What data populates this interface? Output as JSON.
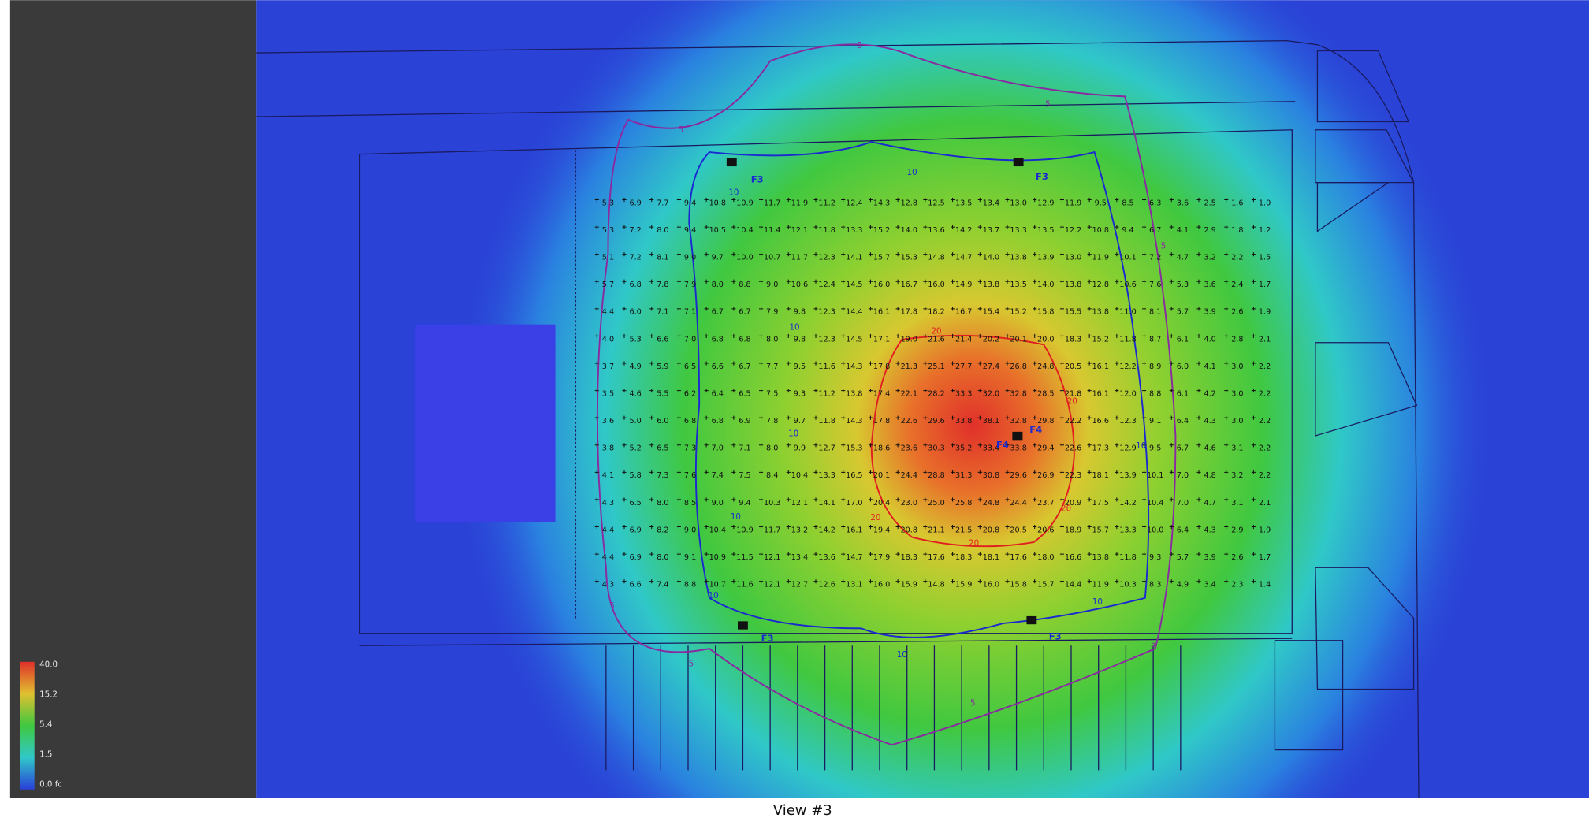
{
  "legend": {
    "labels": [
      "40.0",
      "15.2",
      "5.4",
      "1.5",
      "0.0 fc"
    ]
  },
  "caption": "View #3",
  "fixtures": [
    "F3",
    "F4"
  ],
  "contours": [
    "5",
    "10",
    "20"
  ],
  "grid": {
    "rows": [
      [
        "5.3",
        "6.9",
        "7.7",
        "9.4",
        "10.8",
        "10.9",
        "11.7",
        "11.9",
        "11.2",
        "12.4",
        "14.3",
        "12.8",
        "12.5",
        "13.5",
        "13.4",
        "13.0",
        "12.9",
        "11.9",
        "9.5",
        "8.5",
        "6.3",
        "3.6",
        "2.5",
        "1.6",
        "1.0"
      ],
      [
        "5.3",
        "7.2",
        "8.0",
        "9.4",
        "10.5",
        "10.4",
        "11.4",
        "12.1",
        "11.8",
        "13.3",
        "15.2",
        "14.0",
        "13.6",
        "14.2",
        "13.7",
        "13.3",
        "13.5",
        "12.2",
        "10.8",
        "9.4",
        "6.7",
        "4.1",
        "2.9",
        "1.8",
        "1.2"
      ],
      [
        "5.1",
        "7.2",
        "8.1",
        "9.0",
        "9.7",
        "10.0",
        "10.7",
        "11.7",
        "12.3",
        "14.1",
        "15.7",
        "15.3",
        "14.8",
        "14.7",
        "14.0",
        "13.8",
        "13.9",
        "13.0",
        "11.9",
        "10.1",
        "7.2",
        "4.7",
        "3.2",
        "2.2",
        "1.5"
      ],
      [
        "5.7",
        "6.8",
        "7.8",
        "7.9",
        "8.0",
        "8.8",
        "9.0",
        "10.6",
        "12.4",
        "14.5",
        "16.0",
        "16.7",
        "16.0",
        "14.9",
        "13.8",
        "13.5",
        "14.0",
        "13.8",
        "12.8",
        "10.6",
        "7.6",
        "5.3",
        "3.6",
        "2.4",
        "1.7"
      ],
      [
        "4.4",
        "6.0",
        "7.1",
        "7.1",
        "6.7",
        "6.7",
        "7.9",
        "9.8",
        "12.3",
        "14.4",
        "16.1",
        "17.8",
        "18.2",
        "16.7",
        "15.4",
        "15.2",
        "15.8",
        "15.5",
        "13.8",
        "11.0",
        "8.1",
        "5.7",
        "3.9",
        "2.6",
        "1.9"
      ],
      [
        "4.0",
        "5.3",
        "6.6",
        "7.0",
        "6.8",
        "6.8",
        "8.0",
        "9.8",
        "12.3",
        "14.5",
        "17.1",
        "19.0",
        "21.6",
        "21.4",
        "20.2",
        "20.1",
        "20.0",
        "18.3",
        "15.2",
        "11.8",
        "8.7",
        "6.1",
        "4.0",
        "2.8",
        "2.1"
      ],
      [
        "3.7",
        "4.9",
        "5.9",
        "6.5",
        "6.6",
        "6.7",
        "7.7",
        "9.5",
        "11.6",
        "14.3",
        "17.8",
        "21.3",
        "25.1",
        "27.7",
        "27.4",
        "26.8",
        "24.8",
        "20.5",
        "16.1",
        "12.2",
        "8.9",
        "6.0",
        "4.1",
        "3.0",
        "2.2"
      ],
      [
        "3.5",
        "4.6",
        "5.5",
        "6.2",
        "6.4",
        "6.5",
        "7.5",
        "9.3",
        "11.2",
        "13.8",
        "17.4",
        "22.1",
        "28.2",
        "33.3",
        "32.0",
        "32.8",
        "28.5",
        "21.8",
        "16.1",
        "12.0",
        "8.8",
        "6.1",
        "4.2",
        "3.0",
        "2.2"
      ],
      [
        "3.6",
        "5.0",
        "6.0",
        "6.8",
        "6.8",
        "6.9",
        "7.8",
        "9.7",
        "11.8",
        "14.3",
        "17.8",
        "22.6",
        "29.6",
        "33.8",
        "38.1",
        "32.8",
        "29.8",
        "22.2",
        "16.6",
        "12.3",
        "9.1",
        "6.4",
        "4.3",
        "3.0",
        "2.2"
      ],
      [
        "3.8",
        "5.2",
        "6.5",
        "7.3",
        "7.0",
        "7.1",
        "8.0",
        "9.9",
        "12.7",
        "15.3",
        "18.6",
        "23.6",
        "30.3",
        "35.2",
        "33.4",
        "33.8",
        "29.4",
        "22.6",
        "17.3",
        "12.9",
        "9.5",
        "6.7",
        "4.6",
        "3.1",
        "2.2"
      ],
      [
        "4.1",
        "5.8",
        "7.3",
        "7.6",
        "7.4",
        "7.5",
        "8.4",
        "10.4",
        "13.3",
        "16.5",
        "20.1",
        "24.4",
        "28.8",
        "31.3",
        "30.8",
        "29.6",
        "26.9",
        "22.3",
        "18.1",
        "13.9",
        "10.1",
        "7.0",
        "4.8",
        "3.2",
        "2.2"
      ],
      [
        "4.3",
        "6.5",
        "8.0",
        "8.5",
        "9.0",
        "9.4",
        "10.3",
        "12.1",
        "14.1",
        "17.0",
        "20.4",
        "23.0",
        "25.0",
        "25.8",
        "24.8",
        "24.4",
        "23.7",
        "20.9",
        "17.5",
        "14.2",
        "10.4",
        "7.0",
        "4.7",
        "3.1",
        "2.1"
      ],
      [
        "4.4",
        "6.9",
        "8.2",
        "9.0",
        "10.4",
        "10.9",
        "11.7",
        "13.2",
        "14.2",
        "16.1",
        "19.4",
        "20.8",
        "21.1",
        "21.5",
        "20.8",
        "20.5",
        "20.6",
        "18.9",
        "15.7",
        "13.3",
        "10.0",
        "6.4",
        "4.3",
        "2.9",
        "1.9"
      ],
      [
        "4.4",
        "6.9",
        "8.0",
        "9.1",
        "10.9",
        "11.5",
        "12.1",
        "13.4",
        "13.6",
        "14.7",
        "17.9",
        "18.3",
        "17.6",
        "18.3",
        "18.1",
        "17.6",
        "18.0",
        "16.6",
        "13.8",
        "11.8",
        "9.3",
        "5.7",
        "3.9",
        "2.6",
        "1.7"
      ],
      [
        "4.3",
        "6.6",
        "7.4",
        "8.8",
        "10.7",
        "11.6",
        "12.1",
        "12.7",
        "12.6",
        "13.1",
        "16.0",
        "15.9",
        "14.8",
        "15.9",
        "16.0",
        "15.8",
        "15.7",
        "14.4",
        "11.9",
        "10.3",
        "8.3",
        "4.9",
        "3.4",
        "2.3",
        "1.4"
      ]
    ]
  }
}
